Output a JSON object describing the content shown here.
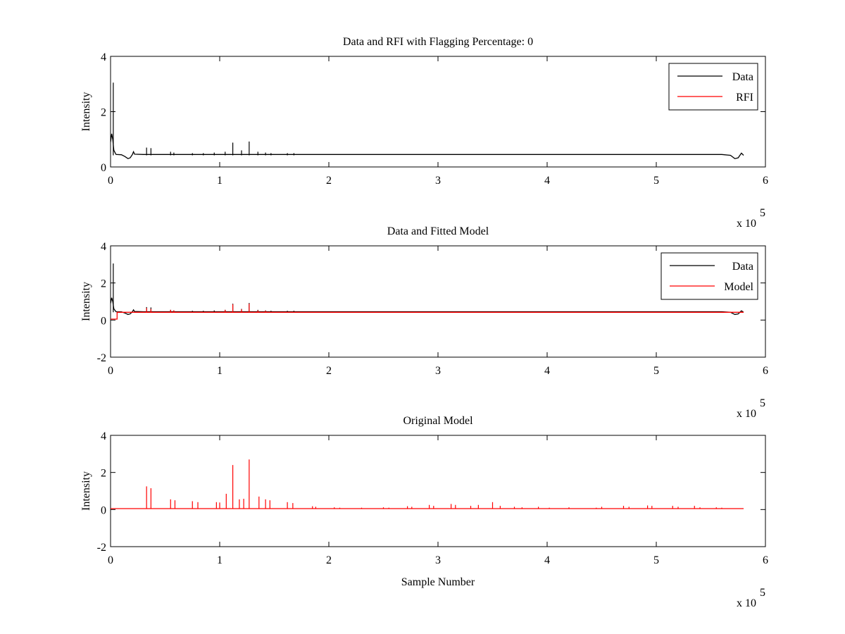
{
  "chart_data": [
    {
      "type": "line",
      "title": "Data and RFI with Flagging Percentage: 0",
      "xlabel": "",
      "ylabel": "Intensity",
      "xlim": [
        0,
        6
      ],
      "ylim": [
        0,
        4
      ],
      "xticks": [
        0,
        1,
        2,
        3,
        4,
        5,
        6
      ],
      "yticks": [
        0,
        2,
        4
      ],
      "x_multiplier_label": "x 10",
      "x_multiplier_exponent": "5",
      "legend": {
        "position": "top-right",
        "entries": [
          {
            "label": "Data",
            "color": "#000000"
          },
          {
            "label": "RFI",
            "color": "#ff0000"
          }
        ]
      },
      "series": [
        {
          "name": "Data",
          "color": "#000000",
          "points": [
            [
              0,
              0.9
            ],
            [
              0.01,
              1.2
            ],
            [
              0.02,
              1.0
            ],
            [
              0.03,
              0.6
            ],
            [
              0.05,
              0.45
            ],
            [
              0.1,
              0.44
            ],
            [
              0.13,
              0.38
            ],
            [
              0.16,
              0.3
            ],
            [
              0.18,
              0.33
            ],
            [
              0.2,
              0.45
            ],
            [
              0.21,
              0.55
            ],
            [
              0.22,
              0.46
            ],
            [
              0.3,
              0.45
            ],
            [
              0.5,
              0.45
            ],
            [
              1.0,
              0.45
            ],
            [
              2.0,
              0.45
            ],
            [
              3.0,
              0.45
            ],
            [
              4.0,
              0.45
            ],
            [
              5.0,
              0.45
            ],
            [
              5.6,
              0.45
            ],
            [
              5.68,
              0.42
            ],
            [
              5.72,
              0.3
            ],
            [
              5.75,
              0.33
            ],
            [
              5.78,
              0.5
            ],
            [
              5.8,
              0.42
            ]
          ],
          "spikes": [
            [
              0.025,
              3.05
            ],
            [
              0.33,
              0.7
            ],
            [
              0.37,
              0.68
            ],
            [
              0.55,
              0.55
            ],
            [
              0.58,
              0.52
            ],
            [
              0.75,
              0.5
            ],
            [
              0.85,
              0.5
            ],
            [
              0.95,
              0.52
            ],
            [
              1.05,
              0.55
            ],
            [
              1.12,
              0.88
            ],
            [
              1.2,
              0.6
            ],
            [
              1.27,
              0.92
            ],
            [
              1.35,
              0.55
            ],
            [
              1.42,
              0.52
            ],
            [
              1.47,
              0.5
            ],
            [
              1.62,
              0.5
            ],
            [
              1.68,
              0.5
            ]
          ]
        },
        {
          "name": "RFI",
          "color": "#ff0000",
          "points": []
        }
      ]
    },
    {
      "type": "line",
      "title": "Data and Fitted Model",
      "xlabel": "",
      "ylabel": "Intensity",
      "xlim": [
        0,
        6
      ],
      "ylim": [
        -2,
        4
      ],
      "xticks": [
        0,
        1,
        2,
        3,
        4,
        5,
        6
      ],
      "yticks": [
        -2,
        0,
        2,
        4
      ],
      "x_multiplier_label": "x 10",
      "x_multiplier_exponent": "5",
      "legend": {
        "position": "top-right",
        "entries": [
          {
            "label": "Data",
            "color": "#000000"
          },
          {
            "label": "Model",
            "color": "#ff0000"
          }
        ]
      },
      "series": [
        {
          "name": "Data",
          "color": "#000000",
          "points": [
            [
              0,
              0.9
            ],
            [
              0.01,
              1.2
            ],
            [
              0.02,
              1.0
            ],
            [
              0.03,
              0.6
            ],
            [
              0.05,
              0.45
            ],
            [
              0.1,
              0.44
            ],
            [
              0.13,
              0.38
            ],
            [
              0.16,
              0.3
            ],
            [
              0.18,
              0.33
            ],
            [
              0.2,
              0.45
            ],
            [
              0.21,
              0.55
            ],
            [
              0.22,
              0.46
            ],
            [
              0.3,
              0.45
            ],
            [
              0.5,
              0.45
            ],
            [
              1.0,
              0.45
            ],
            [
              2.0,
              0.45
            ],
            [
              3.0,
              0.45
            ],
            [
              4.0,
              0.45
            ],
            [
              5.0,
              0.45
            ],
            [
              5.6,
              0.45
            ],
            [
              5.68,
              0.42
            ],
            [
              5.72,
              0.3
            ],
            [
              5.75,
              0.33
            ],
            [
              5.78,
              0.5
            ],
            [
              5.8,
              0.42
            ]
          ],
          "spikes": [
            [
              0.025,
              3.05
            ],
            [
              0.33,
              0.7
            ],
            [
              0.37,
              0.68
            ],
            [
              0.55,
              0.55
            ],
            [
              0.58,
              0.52
            ],
            [
              0.75,
              0.5
            ],
            [
              0.85,
              0.5
            ],
            [
              0.95,
              0.52
            ],
            [
              1.05,
              0.55
            ],
            [
              1.12,
              0.88
            ],
            [
              1.2,
              0.6
            ],
            [
              1.27,
              0.92
            ],
            [
              1.35,
              0.55
            ],
            [
              1.42,
              0.52
            ],
            [
              1.47,
              0.5
            ],
            [
              1.62,
              0.5
            ],
            [
              1.68,
              0.5
            ]
          ]
        },
        {
          "name": "Model",
          "color": "#ff0000",
          "points": [
            [
              0,
              0.05
            ],
            [
              0.06,
              0.05
            ],
            [
              0.06,
              0.42
            ],
            [
              0.5,
              0.42
            ],
            [
              1.0,
              0.42
            ],
            [
              2.0,
              0.42
            ],
            [
              3.0,
              0.42
            ],
            [
              4.0,
              0.42
            ],
            [
              5.0,
              0.42
            ],
            [
              5.8,
              0.42
            ]
          ],
          "spikes": [
            [
              0.33,
              0.65
            ],
            [
              0.37,
              0.6
            ],
            [
              0.55,
              0.55
            ],
            [
              0.58,
              0.52
            ],
            [
              1.05,
              0.55
            ],
            [
              1.12,
              0.85
            ],
            [
              1.2,
              0.58
            ],
            [
              1.27,
              0.88
            ],
            [
              1.35,
              0.52
            ],
            [
              1.42,
              0.5
            ]
          ]
        }
      ]
    },
    {
      "type": "line",
      "title": "Original Model",
      "xlabel": "Sample Number",
      "ylabel": "Intensity",
      "xlim": [
        0,
        6
      ],
      "ylim": [
        -2,
        4
      ],
      "xticks": [
        0,
        1,
        2,
        3,
        4,
        5,
        6
      ],
      "yticks": [
        -2,
        0,
        2,
        4
      ],
      "x_multiplier_label": "x 10",
      "x_multiplier_exponent": "5",
      "series": [
        {
          "name": "Model",
          "color": "#ff0000",
          "points": [
            [
              0,
              0.05
            ],
            [
              5.8,
              0.05
            ]
          ],
          "spikes": [
            [
              0.33,
              1.25
            ],
            [
              0.37,
              1.15
            ],
            [
              0.55,
              0.55
            ],
            [
              0.59,
              0.5
            ],
            [
              0.75,
              0.45
            ],
            [
              0.8,
              0.4
            ],
            [
              0.97,
              0.4
            ],
            [
              1.0,
              0.38
            ],
            [
              1.06,
              0.85
            ],
            [
              1.12,
              2.4
            ],
            [
              1.18,
              0.55
            ],
            [
              1.22,
              0.58
            ],
            [
              1.27,
              2.7
            ],
            [
              1.36,
              0.7
            ],
            [
              1.42,
              0.55
            ],
            [
              1.46,
              0.5
            ],
            [
              1.62,
              0.4
            ],
            [
              1.67,
              0.35
            ],
            [
              1.85,
              0.18
            ],
            [
              1.88,
              0.15
            ],
            [
              2.05,
              0.12
            ],
            [
              2.1,
              0.1
            ],
            [
              2.3,
              0.1
            ],
            [
              2.5,
              0.12
            ],
            [
              2.55,
              0.1
            ],
            [
              2.72,
              0.18
            ],
            [
              2.76,
              0.15
            ],
            [
              2.92,
              0.25
            ],
            [
              2.96,
              0.2
            ],
            [
              3.12,
              0.3
            ],
            [
              3.16,
              0.25
            ],
            [
              3.3,
              0.2
            ],
            [
              3.37,
              0.25
            ],
            [
              3.5,
              0.4
            ],
            [
              3.57,
              0.2
            ],
            [
              3.7,
              0.15
            ],
            [
              3.77,
              0.12
            ],
            [
              3.92,
              0.15
            ],
            [
              4.02,
              0.1
            ],
            [
              4.2,
              0.12
            ],
            [
              4.45,
              0.1
            ],
            [
              4.5,
              0.15
            ],
            [
              4.7,
              0.2
            ],
            [
              4.75,
              0.15
            ],
            [
              4.92,
              0.22
            ],
            [
              4.96,
              0.2
            ],
            [
              5.15,
              0.2
            ],
            [
              5.2,
              0.15
            ],
            [
              5.35,
              0.2
            ],
            [
              5.4,
              0.12
            ],
            [
              5.55,
              0.12
            ],
            [
              5.6,
              0.1
            ]
          ]
        }
      ]
    }
  ]
}
